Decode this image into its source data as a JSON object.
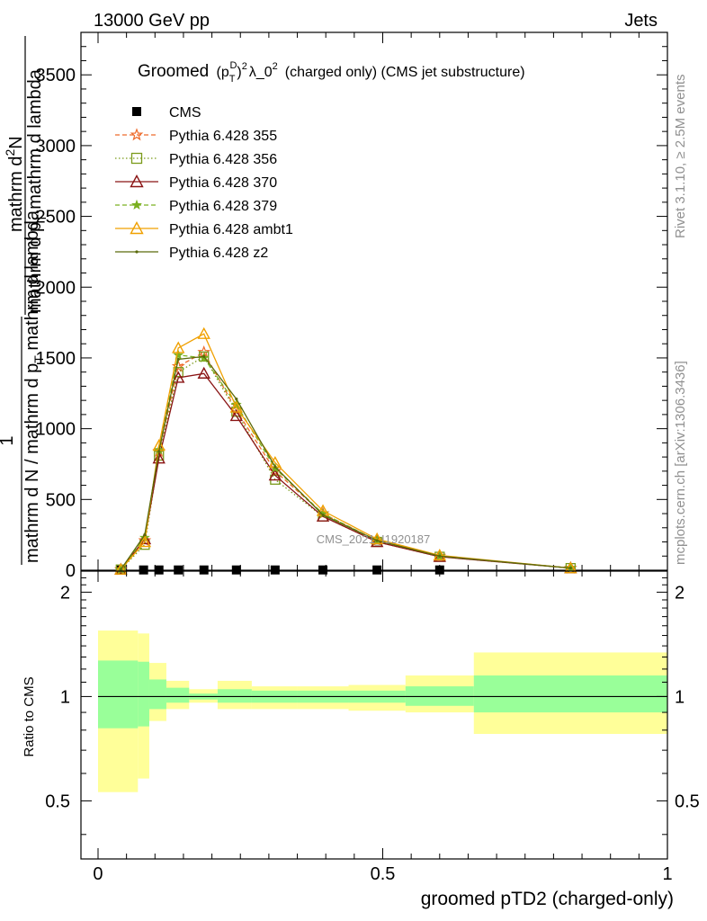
{
  "header": {
    "left": "13000 GeV pp",
    "right": "Jets"
  },
  "side_labels": {
    "rivet": "Rivet 3.1.10, ≥ 2.5M events",
    "mcplots": "mcplots.cern.ch [arXiv:1306.3436]"
  },
  "chart_data": [
    {
      "type": "line",
      "title": "Groomed (p_T^D)^2 λ_0^2  (charged only) (CMS jet substructure)",
      "title_parts": {
        "pre": "Groomed",
        "p": "(p",
        "sub": "T",
        "sup": "D",
        "post": ")",
        "sq": "2",
        "lambda": "λ_0",
        "lambda_sq": "2",
        "rest": "(charged only) (CMS jet substructure)"
      },
      "watermark": "CMS_2021_I1920187",
      "ylabel_lines": [
        "1",
        "mathrm d N / mathrm d p_T mathrm d lambda",
        "mathrm d^2N",
        "mathrm d p_T mathrm d lambda"
      ],
      "ylabel_display": {
        "numerator_a": "1",
        "denominator_a": "mathrm d N / mathrm d p",
        "denominator_a_sub": "T",
        "denominator_a_tail": " mathrm d lambda",
        "numerator_b": "mathrm d",
        "numerator_b_sup": "2",
        "numerator_b_tail": "N",
        "denominator_b": "mathrm d p",
        "denominator_b_sub": "T",
        "denominator_b_tail": " mathrm d lambda"
      },
      "xlim": [
        0,
        1
      ],
      "ylim": [
        0,
        3800
      ],
      "yticks": [
        0,
        500,
        1000,
        1500,
        2000,
        2500,
        3000,
        3500
      ],
      "ytick_labels": [
        "0",
        "500",
        "1000",
        "1500",
        "2000",
        "2500",
        "3000",
        "3500"
      ],
      "legend_position": "top-left",
      "series": [
        {
          "name": "CMS",
          "color": "#000000",
          "marker": "square",
          "style": "none",
          "x": [
            0.04,
            0.08,
            0.107,
            0.141,
            0.186,
            0.243,
            0.311,
            0.395,
            0.49,
            0.6
          ],
          "y": [
            2,
            2,
            2,
            2,
            2,
            2,
            2,
            2,
            2,
            2
          ]
        },
        {
          "name": "Pythia 6.428 355",
          "color": "#ee6a2a",
          "marker": "star",
          "style": "dashed",
          "x": [
            0.04,
            0.082,
            0.107,
            0.141,
            0.186,
            0.243,
            0.311,
            0.395,
            0.49,
            0.6,
            0.83
          ],
          "y": [
            5,
            210,
            840,
            1440,
            1540,
            1130,
            700,
            400,
            210,
            100,
            15
          ]
        },
        {
          "name": "Pythia 6.428 356",
          "color": "#7a9a1a",
          "marker": "square-open",
          "style": "dotted",
          "x": [
            0.04,
            0.082,
            0.107,
            0.141,
            0.186,
            0.243,
            0.311,
            0.395,
            0.49,
            0.6,
            0.83
          ],
          "y": [
            5,
            180,
            810,
            1400,
            1510,
            1120,
            640,
            380,
            200,
            95,
            15
          ]
        },
        {
          "name": "Pythia 6.428 370",
          "color": "#8a1414",
          "marker": "triangle-open",
          "style": "solid",
          "x": [
            0.04,
            0.082,
            0.107,
            0.141,
            0.186,
            0.243,
            0.311,
            0.395,
            0.49,
            0.6,
            0.83
          ],
          "y": [
            5,
            220,
            790,
            1360,
            1390,
            1090,
            670,
            380,
            200,
            95,
            15
          ]
        },
        {
          "name": "Pythia 6.428 379",
          "color": "#7ab020",
          "marker": "star-small",
          "style": "dashed",
          "x": [
            0.04,
            0.082,
            0.107,
            0.141,
            0.186,
            0.243,
            0.311,
            0.395,
            0.49,
            0.6,
            0.83
          ],
          "y": [
            5,
            230,
            850,
            1520,
            1500,
            1170,
            720,
            400,
            210,
            100,
            15
          ]
        },
        {
          "name": "Pythia 6.428 ambt1",
          "color": "#f0a000",
          "marker": "triangle-open",
          "style": "solid",
          "x": [
            0.04,
            0.082,
            0.107,
            0.141,
            0.186,
            0.243,
            0.311,
            0.395,
            0.49,
            0.6,
            0.83
          ],
          "y": [
            5,
            200,
            880,
            1570,
            1670,
            1150,
            760,
            420,
            220,
            105,
            15
          ]
        },
        {
          "name": "Pythia 6.428 z2",
          "color": "#5a6a0a",
          "marker": "dot",
          "style": "solid",
          "x": [
            0.04,
            0.082,
            0.107,
            0.141,
            0.186,
            0.243,
            0.311,
            0.395,
            0.49,
            0.6,
            0.83
          ],
          "y": [
            5,
            250,
            840,
            1490,
            1510,
            1210,
            730,
            390,
            210,
            100,
            15
          ]
        }
      ]
    },
    {
      "type": "area",
      "ylabel": "Ratio to CMS",
      "xlabel": "groomed pTD2 (charged-only)",
      "xlim": [
        -0.03,
        1.0
      ],
      "ylim": [
        0.34,
        2.3
      ],
      "yscale": "log",
      "yticks": [
        0.5,
        1,
        2
      ],
      "ytick_labels": [
        "0.5",
        "1",
        "2"
      ],
      "xticks": [
        0,
        0.5,
        1
      ],
      "xtick_labels": [
        "0",
        "0.5",
        "1"
      ],
      "reference_line": 1,
      "bands": [
        {
          "name": "yellow",
          "color": "#ffff99",
          "edges": [
            0.0,
            0.07,
            0.09,
            0.12,
            0.16,
            0.21,
            0.27,
            0.35,
            0.44,
            0.54,
            0.66,
            1.0
          ],
          "low": [
            0.53,
            0.58,
            0.85,
            0.92,
            0.96,
            0.92,
            0.92,
            0.92,
            0.91,
            0.9,
            0.78
          ],
          "high": [
            1.55,
            1.52,
            1.25,
            1.11,
            1.05,
            1.11,
            1.07,
            1.07,
            1.08,
            1.15,
            1.34
          ]
        },
        {
          "name": "green",
          "color": "#99ff99",
          "edges": [
            0.0,
            0.07,
            0.09,
            0.12,
            0.16,
            0.21,
            0.27,
            0.35,
            0.44,
            0.54,
            0.66,
            1.0
          ],
          "low": [
            0.81,
            0.82,
            0.92,
            0.96,
            0.98,
            0.96,
            0.96,
            0.96,
            0.96,
            0.94,
            0.9
          ],
          "high": [
            1.27,
            1.26,
            1.12,
            1.06,
            1.02,
            1.05,
            1.04,
            1.04,
            1.04,
            1.07,
            1.15
          ]
        }
      ]
    }
  ]
}
